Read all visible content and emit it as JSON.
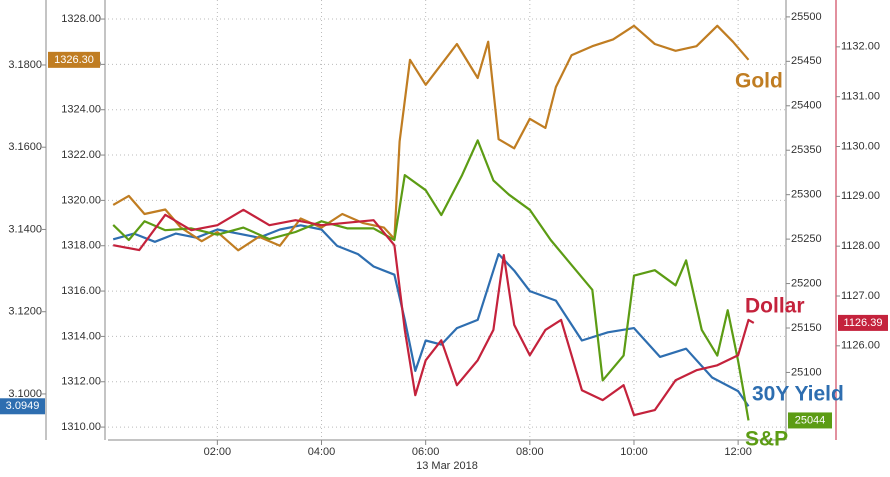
{
  "chart_data": {
    "type": "line",
    "xlabel": "13 Mar 2018",
    "xlim": [
      -0.1,
      12.9
    ],
    "xticks": [
      {
        "value": 2,
        "label": "02:00"
      },
      {
        "value": 4,
        "label": "04:00"
      },
      {
        "value": 6,
        "label": "06:00"
      },
      {
        "value": 8,
        "label": "08:00"
      },
      {
        "value": 10,
        "label": "10:00"
      },
      {
        "value": 12,
        "label": "12:00"
      }
    ],
    "grid": true,
    "yaxes": [
      {
        "lim": [
          3.0888,
          3.1958
        ],
        "ticks": [
          {
            "value": 3.1,
            "label": "3.1000"
          },
          {
            "value": 3.12,
            "label": "3.1200"
          },
          {
            "value": 3.14,
            "label": "3.1400"
          },
          {
            "value": 3.16,
            "label": "3.1600"
          },
          {
            "value": 3.18,
            "label": "3.1800"
          }
        ]
      },
      {
        "lim": [
          1309.43,
          1328.84
        ],
        "ticks": [
          {
            "value": 1310,
            "label": "1310.00"
          },
          {
            "value": 1312,
            "label": "1312.00"
          },
          {
            "value": 1314,
            "label": "1314.00"
          },
          {
            "value": 1316,
            "label": "1316.00"
          },
          {
            "value": 1318,
            "label": "1318.00"
          },
          {
            "value": 1320,
            "label": "1320.00"
          },
          {
            "value": 1322,
            "label": "1322.00"
          },
          {
            "value": 1324,
            "label": "1324.00"
          },
          {
            "value": 1326,
            "label": "1326.00"
          },
          {
            "value": 1328,
            "label": "1328.00"
          }
        ]
      },
      {
        "lim": [
          25024,
          25519
        ],
        "ticks": [
          25100,
          25150,
          25200,
          25250,
          25300,
          25350,
          25400,
          25450,
          25500
        ]
      },
      {
        "lim": [
          1124.11,
          1132.94
        ],
        "ticks": [
          {
            "value": 1126,
            "label": "1126.00"
          },
          {
            "value": 1127,
            "label": "1127.00"
          },
          {
            "value": 1128,
            "label": "1128.00"
          },
          {
            "value": 1129,
            "label": "1129.00"
          },
          {
            "value": 1130,
            "label": "1130.00"
          },
          {
            "value": 1131,
            "label": "1131.00"
          },
          {
            "value": 1132,
            "label": "1132.00"
          }
        ]
      }
    ],
    "series": [
      {
        "name": "30Y Yield",
        "color": "#2e6eb0",
        "axis": 0,
        "last_label": "3.0949",
        "x": [
          0,
          0.4,
          0.8,
          1.2,
          1.6,
          2,
          2.4,
          2.8,
          3.2,
          3.6,
          4,
          4.3,
          4.7,
          5,
          5.4,
          5.6,
          5.8,
          6,
          6.3,
          6.6,
          7,
          7.4,
          7.7,
          8,
          8.5,
          9,
          9.5,
          10,
          10.5,
          11,
          11.5,
          12,
          12.2
        ],
        "values": [
          3.1376,
          3.139,
          3.137,
          3.139,
          3.138,
          3.14,
          3.139,
          3.138,
          3.14,
          3.141,
          3.14,
          3.136,
          3.134,
          3.131,
          3.129,
          3.118,
          3.1056,
          3.113,
          3.112,
          3.116,
          3.118,
          3.134,
          3.13,
          3.125,
          3.1227,
          3.113,
          3.115,
          3.116,
          3.109,
          3.111,
          3.104,
          3.1007,
          3.097
        ]
      },
      {
        "name": "Gold",
        "color": "#c07d22",
        "axis": 1,
        "last_label": "1326.30",
        "x": [
          0,
          0.3,
          0.6,
          1,
          1.3,
          1.7,
          2,
          2.4,
          2.8,
          3.2,
          3.6,
          4,
          4.4,
          4.8,
          5.2,
          5.4,
          5.5,
          5.7,
          6,
          6.3,
          6.6,
          7,
          7.2,
          7.4,
          7.7,
          8,
          8.3,
          8.5,
          8.8,
          9.2,
          9.6,
          10,
          10.4,
          10.8,
          11.2,
          11.6,
          11.9,
          12.2
        ],
        "values": [
          1319.8,
          1320.2,
          1319.4,
          1319.6,
          1318.8,
          1318.2,
          1318.6,
          1317.8,
          1318.4,
          1318.0,
          1319.2,
          1318.8,
          1319.4,
          1319.0,
          1318.8,
          1318.3,
          1322.6,
          1326.2,
          1325.1,
          1326.0,
          1326.9,
          1325.4,
          1327.0,
          1322.7,
          1322.3,
          1323.6,
          1323.2,
          1325.0,
          1326.4,
          1326.8,
          1327.1,
          1327.7,
          1326.9,
          1326.6,
          1326.8,
          1327.7,
          1327.0,
          1326.2
        ]
      },
      {
        "name": "S&P",
        "color": "#5c9c14",
        "axis": 2,
        "last_label": "25044",
        "x": [
          0,
          0.3,
          0.6,
          1,
          1.5,
          2,
          2.5,
          3,
          3.5,
          4,
          4.5,
          5,
          5.4,
          5.6,
          6,
          6.3,
          6.7,
          7,
          7.3,
          7.6,
          8,
          8.4,
          8.8,
          9.2,
          9.4,
          9.8,
          10,
          10.4,
          10.8,
          11,
          11.3,
          11.6,
          11.8,
          12,
          12.1,
          12.2
        ],
        "values": [
          25266,
          25249,
          25270,
          25260,
          25262,
          25255,
          25263,
          25250,
          25258,
          25270,
          25262,
          25262,
          25249,
          25322,
          25305,
          25277,
          25322,
          25361,
          25316,
          25300,
          25283,
          25249,
          25221,
          25193,
          25091,
          25119,
          25209,
          25215,
          25198,
          25226,
          25148,
          25119,
          25170,
          25113,
          25080,
          25046
        ]
      },
      {
        "name": "Dollar",
        "color": "#c4223c",
        "axis": 3,
        "last_label": "1126.39",
        "x": [
          0,
          0.5,
          1,
          1.5,
          2,
          2.5,
          3,
          3.5,
          4,
          5,
          5.4,
          5.6,
          5.8,
          6,
          6.3,
          6.6,
          7,
          7.3,
          7.5,
          7.7,
          8,
          8.3,
          8.6,
          9,
          9.4,
          9.8,
          10,
          10.4,
          10.8,
          11.2,
          11.6,
          12,
          12.2,
          12.3
        ],
        "values": [
          1128.02,
          1127.92,
          1128.63,
          1128.32,
          1128.42,
          1128.73,
          1128.42,
          1128.52,
          1128.42,
          1128.52,
          1128.02,
          1126.32,
          1125.01,
          1125.71,
          1126.11,
          1125.21,
          1125.71,
          1126.32,
          1127.82,
          1126.42,
          1125.81,
          1126.32,
          1126.52,
          1125.11,
          1124.91,
          1125.21,
          1124.61,
          1124.71,
          1125.31,
          1125.51,
          1125.61,
          1125.81,
          1126.52,
          1126.46
        ]
      }
    ]
  }
}
